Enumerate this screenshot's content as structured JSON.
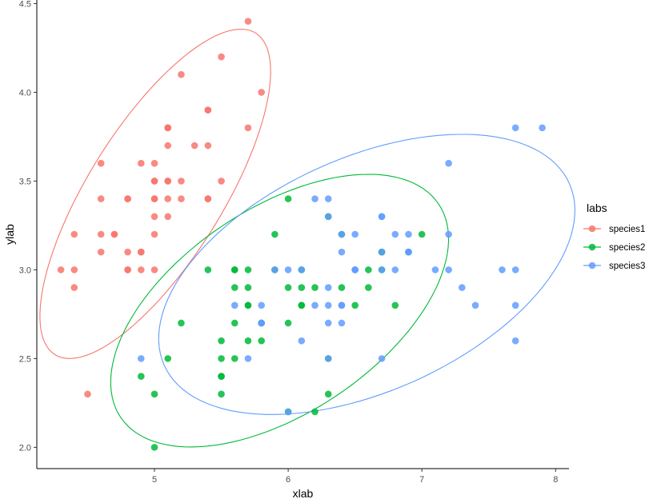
{
  "chart_data": {
    "type": "scatter",
    "title": "",
    "xlabel": "xlab",
    "ylabel": "ylab",
    "xlim": [
      4.12,
      8.1
    ],
    "ylim": [
      1.88,
      4.52
    ],
    "x_ticks": [
      5,
      6,
      7,
      8
    ],
    "y_ticks": [
      2.0,
      2.5,
      3.0,
      3.5,
      4.0,
      4.5
    ],
    "x_tick_labels": [
      "5",
      "6",
      "7",
      "8"
    ],
    "y_tick_labels": [
      "2.0",
      "2.5",
      "3.0",
      "3.5",
      "4.0",
      "4.5"
    ],
    "grid": false,
    "legend": {
      "title": "labs",
      "position": "right"
    },
    "series": [
      {
        "name": "species1",
        "color": "#F8766D",
        "points": [
          [
            5.1,
            3.5
          ],
          [
            4.9,
            3.0
          ],
          [
            4.7,
            3.2
          ],
          [
            4.6,
            3.1
          ],
          [
            5.0,
            3.6
          ],
          [
            5.4,
            3.9
          ],
          [
            4.6,
            3.4
          ],
          [
            5.0,
            3.4
          ],
          [
            4.4,
            2.9
          ],
          [
            4.9,
            3.1
          ],
          [
            5.4,
            3.7
          ],
          [
            4.8,
            3.4
          ],
          [
            4.8,
            3.0
          ],
          [
            4.3,
            3.0
          ],
          [
            5.8,
            4.0
          ],
          [
            5.7,
            4.4
          ],
          [
            5.4,
            3.9
          ],
          [
            5.1,
            3.5
          ],
          [
            5.7,
            3.8
          ],
          [
            5.1,
            3.8
          ],
          [
            5.4,
            3.4
          ],
          [
            5.1,
            3.7
          ],
          [
            4.6,
            3.6
          ],
          [
            5.1,
            3.3
          ],
          [
            4.8,
            3.4
          ],
          [
            5.0,
            3.0
          ],
          [
            5.0,
            3.4
          ],
          [
            5.2,
            3.5
          ],
          [
            5.2,
            3.4
          ],
          [
            4.7,
            3.2
          ],
          [
            4.8,
            3.1
          ],
          [
            5.4,
            3.4
          ],
          [
            5.2,
            4.1
          ],
          [
            5.5,
            4.2
          ],
          [
            4.9,
            3.1
          ],
          [
            5.0,
            3.2
          ],
          [
            5.5,
            3.5
          ],
          [
            4.9,
            3.6
          ],
          [
            4.4,
            3.0
          ],
          [
            5.1,
            3.4
          ],
          [
            5.0,
            3.5
          ],
          [
            4.5,
            2.3
          ],
          [
            4.4,
            3.2
          ],
          [
            5.0,
            3.5
          ],
          [
            5.1,
            3.8
          ],
          [
            4.8,
            3.0
          ],
          [
            5.1,
            3.8
          ],
          [
            4.6,
            3.2
          ],
          [
            5.3,
            3.7
          ],
          [
            5.0,
            3.3
          ]
        ]
      },
      {
        "name": "species2",
        "color": "#00BA38",
        "points": [
          [
            7.0,
            3.2
          ],
          [
            6.4,
            3.2
          ],
          [
            6.9,
            3.1
          ],
          [
            5.5,
            2.3
          ],
          [
            6.5,
            2.8
          ],
          [
            5.7,
            2.8
          ],
          [
            6.3,
            3.3
          ],
          [
            4.9,
            2.4
          ],
          [
            6.6,
            2.9
          ],
          [
            5.2,
            2.7
          ],
          [
            5.0,
            2.0
          ],
          [
            5.9,
            3.0
          ],
          [
            6.0,
            2.2
          ],
          [
            6.1,
            2.9
          ],
          [
            5.6,
            2.9
          ],
          [
            6.7,
            3.1
          ],
          [
            5.6,
            3.0
          ],
          [
            5.8,
            2.7
          ],
          [
            6.2,
            2.2
          ],
          [
            5.6,
            2.5
          ],
          [
            5.9,
            3.2
          ],
          [
            6.1,
            2.8
          ],
          [
            6.3,
            2.5
          ],
          [
            6.1,
            2.8
          ],
          [
            6.4,
            2.9
          ],
          [
            6.6,
            3.0
          ],
          [
            6.8,
            2.8
          ],
          [
            6.7,
            3.0
          ],
          [
            6.0,
            2.9
          ],
          [
            5.7,
            2.6
          ],
          [
            5.5,
            2.4
          ],
          [
            5.5,
            2.4
          ],
          [
            5.8,
            2.7
          ],
          [
            6.0,
            2.7
          ],
          [
            5.4,
            3.0
          ],
          [
            6.0,
            3.4
          ],
          [
            6.7,
            3.1
          ],
          [
            6.3,
            2.3
          ],
          [
            5.6,
            3.0
          ],
          [
            5.5,
            2.5
          ],
          [
            5.5,
            2.6
          ],
          [
            6.1,
            3.0
          ],
          [
            5.8,
            2.6
          ],
          [
            5.0,
            2.3
          ],
          [
            5.6,
            2.7
          ],
          [
            5.7,
            3.0
          ],
          [
            5.7,
            2.9
          ],
          [
            6.2,
            2.9
          ],
          [
            5.1,
            2.5
          ],
          [
            5.7,
            2.8
          ]
        ]
      },
      {
        "name": "species3",
        "color": "#619CFF",
        "points": [
          [
            6.3,
            3.3
          ],
          [
            5.8,
            2.7
          ],
          [
            7.1,
            3.0
          ],
          [
            6.3,
            2.9
          ],
          [
            6.5,
            3.0
          ],
          [
            7.6,
            3.0
          ],
          [
            4.9,
            2.5
          ],
          [
            7.3,
            2.9
          ],
          [
            6.7,
            2.5
          ],
          [
            7.2,
            3.6
          ],
          [
            6.5,
            3.2
          ],
          [
            6.4,
            2.7
          ],
          [
            6.8,
            3.0
          ],
          [
            5.7,
            2.5
          ],
          [
            5.8,
            2.8
          ],
          [
            6.4,
            3.2
          ],
          [
            6.5,
            3.0
          ],
          [
            7.7,
            3.8
          ],
          [
            7.7,
            2.6
          ],
          [
            6.0,
            2.2
          ],
          [
            6.9,
            3.2
          ],
          [
            5.6,
            2.8
          ],
          [
            7.7,
            2.8
          ],
          [
            6.3,
            2.7
          ],
          [
            6.7,
            3.3
          ],
          [
            7.2,
            3.2
          ],
          [
            6.2,
            2.8
          ],
          [
            6.1,
            3.0
          ],
          [
            6.4,
            2.8
          ],
          [
            7.2,
            3.0
          ],
          [
            7.4,
            2.8
          ],
          [
            7.9,
            3.8
          ],
          [
            6.4,
            2.8
          ],
          [
            6.3,
            2.8
          ],
          [
            6.1,
            2.6
          ],
          [
            7.7,
            3.0
          ],
          [
            6.3,
            3.4
          ],
          [
            6.4,
            3.1
          ],
          [
            6.0,
            3.0
          ],
          [
            6.9,
            3.1
          ],
          [
            6.7,
            3.1
          ],
          [
            6.9,
            3.1
          ],
          [
            5.8,
            2.7
          ],
          [
            6.8,
            3.2
          ],
          [
            6.7,
            3.3
          ],
          [
            6.7,
            3.0
          ],
          [
            6.3,
            2.5
          ],
          [
            6.5,
            3.0
          ],
          [
            6.2,
            3.4
          ],
          [
            5.9,
            3.0
          ]
        ]
      }
    ]
  }
}
